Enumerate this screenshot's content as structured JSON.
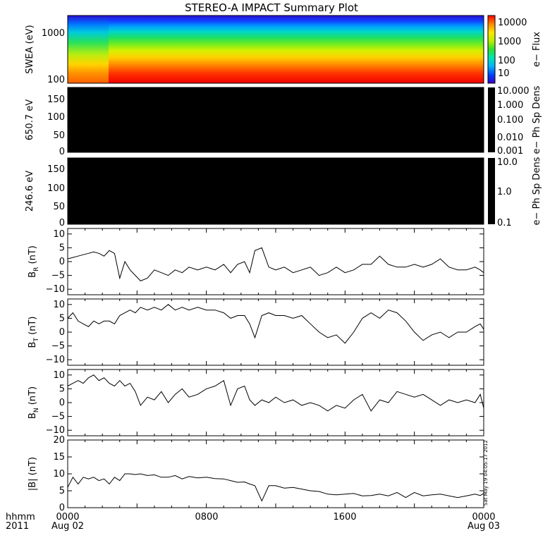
{
  "chart_data": {
    "type": "line",
    "title": "STEREO-A IMPACT Summary Plot",
    "x_axis": {
      "label_line1": "hhmm",
      "label_line2": "2011",
      "ticks": [
        {
          "t": 0,
          "time": "0000",
          "date": "Aug 02"
        },
        {
          "t": 8,
          "time": "0800",
          "date": ""
        },
        {
          "t": 16,
          "time": "1600",
          "date": ""
        },
        {
          "t": 24,
          "time": "0000",
          "date": "Aug 03"
        }
      ],
      "range_hours": [
        0,
        24
      ]
    },
    "panels": [
      {
        "id": "swea",
        "type": "heatmap",
        "ylabel": "SWEA (eV)",
        "y_log": true,
        "ylim": [
          90,
          2000
        ],
        "yticks": [
          "100",
          "1000"
        ],
        "colorbar_label": "e− Flux",
        "colorbar_ticks": [
          "10",
          "100",
          "1000",
          "10000"
        ],
        "colorbar_range_log": [
          0.7,
          4.2
        ],
        "palette": "rainbow (blue low → red high)"
      },
      {
        "id": "pad650",
        "type": "heatmap",
        "ylabel": "650.7 eV",
        "ylim": [
          0,
          180
        ],
        "yticks": [
          "0",
          "50",
          "100",
          "150"
        ],
        "fill": "black",
        "colorbar_label": "e− Ph Sp Dens",
        "colorbar_ticks": [
          "10.000",
          "1.000",
          "0.100",
          "0.010",
          "0.001"
        ]
      },
      {
        "id": "pad246",
        "type": "heatmap",
        "ylabel": "246.6 eV",
        "ylim": [
          0,
          180
        ],
        "yticks": [
          "0",
          "50",
          "100",
          "150"
        ],
        "fill": "black",
        "colorbar_label": "e− Ph Sp Dens",
        "colorbar_ticks": [
          "10.0",
          "1.0",
          "0.1"
        ]
      },
      {
        "id": "br",
        "type": "line",
        "ylabel_main": "B",
        "ylabel_sub": "R",
        "ylabel_unit": " (nT)",
        "ylim": [
          -12,
          12
        ],
        "yticks": [
          "10",
          "5",
          "0",
          "−5",
          "−10"
        ],
        "ytick_values": [
          10,
          5,
          0,
          -5,
          -10
        ],
        "x": [
          0,
          0.3,
          0.6,
          0.9,
          1.2,
          1.5,
          1.8,
          2.1,
          2.4,
          2.7,
          3.0,
          3.3,
          3.6,
          3.9,
          4.2,
          4.6,
          5.0,
          5.4,
          5.8,
          6.2,
          6.6,
          7.0,
          7.5,
          8.0,
          8.5,
          9.0,
          9.4,
          9.8,
          10.2,
          10.5,
          10.8,
          11.2,
          11.6,
          12.0,
          12.5,
          13.0,
          13.5,
          14.0,
          14.5,
          15.0,
          15.5,
          16.0,
          16.5,
          17.0,
          17.5,
          18.0,
          18.5,
          19.0,
          19.5,
          20.0,
          20.5,
          21.0,
          21.5,
          22.0,
          22.5,
          23.0,
          23.5,
          23.8,
          24.0
        ],
        "y": [
          1,
          1.5,
          2,
          2.5,
          3,
          3.5,
          3,
          2,
          4,
          3,
          -6,
          0,
          -3,
          -5,
          -7,
          -6,
          -3,
          -4,
          -5,
          -3,
          -4,
          -2,
          -3,
          -2,
          -3,
          -1,
          -4,
          -1,
          0,
          -4,
          4,
          5,
          -2,
          -3,
          -2,
          -4,
          -3,
          -2,
          -5,
          -4,
          -2,
          -4,
          -3,
          -1,
          -1,
          2,
          -1,
          -2,
          -2,
          -1,
          -2,
          -1,
          1,
          -2,
          -3,
          -3,
          -2,
          -3,
          -4
        ]
      },
      {
        "id": "bt",
        "type": "line",
        "ylabel_main": "B",
        "ylabel_sub": "T",
        "ylabel_unit": " (nT)",
        "ylim": [
          -12,
          12
        ],
        "yticks": [
          "10",
          "5",
          "0",
          "−5",
          "−10"
        ],
        "ytick_values": [
          10,
          5,
          0,
          -5,
          -10
        ],
        "x": [
          0,
          0.3,
          0.6,
          0.9,
          1.2,
          1.5,
          1.8,
          2.1,
          2.4,
          2.7,
          3.0,
          3.3,
          3.6,
          3.9,
          4.2,
          4.6,
          5.0,
          5.4,
          5.8,
          6.2,
          6.6,
          7.0,
          7.5,
          8.0,
          8.5,
          9.0,
          9.4,
          9.8,
          10.2,
          10.5,
          10.8,
          11.2,
          11.6,
          12.0,
          12.5,
          13.0,
          13.5,
          14.0,
          14.5,
          15.0,
          15.5,
          16.0,
          16.5,
          17.0,
          17.5,
          18.0,
          18.5,
          19.0,
          19.5,
          20.0,
          20.5,
          21.0,
          21.5,
          22.0,
          22.5,
          23.0,
          23.5,
          23.8,
          24.0
        ],
        "y": [
          5,
          7,
          4,
          3,
          2,
          4,
          3,
          4,
          4,
          3,
          6,
          7,
          8,
          7,
          9,
          8,
          9,
          8,
          10,
          8,
          9,
          8,
          9,
          8,
          8,
          7,
          5,
          6,
          6,
          3,
          -2,
          6,
          7,
          6,
          6,
          5,
          6,
          3,
          0,
          -2,
          -1,
          -4,
          0,
          5,
          7,
          5,
          8,
          7,
          4,
          0,
          -3,
          -1,
          0,
          -2,
          0,
          0,
          2,
          3,
          1
        ]
      },
      {
        "id": "bn",
        "type": "line",
        "ylabel_main": "B",
        "ylabel_sub": "N",
        "ylabel_unit": " (nT)",
        "ylim": [
          -12,
          12
        ],
        "yticks": [
          "10",
          "5",
          "0",
          "−5",
          "−10"
        ],
        "ytick_values": [
          10,
          5,
          0,
          -5,
          -10
        ],
        "x": [
          0,
          0.3,
          0.6,
          0.9,
          1.2,
          1.5,
          1.8,
          2.1,
          2.4,
          2.7,
          3.0,
          3.3,
          3.6,
          3.9,
          4.2,
          4.6,
          5.0,
          5.4,
          5.8,
          6.2,
          6.6,
          7.0,
          7.5,
          8.0,
          8.5,
          9.0,
          9.4,
          9.8,
          10.2,
          10.5,
          10.8,
          11.2,
          11.6,
          12.0,
          12.5,
          13.0,
          13.5,
          14.0,
          14.5,
          15.0,
          15.5,
          16.0,
          16.5,
          17.0,
          17.5,
          18.0,
          18.5,
          19.0,
          19.5,
          20.0,
          20.5,
          21.0,
          21.5,
          22.0,
          22.5,
          23.0,
          23.5,
          23.8,
          24.0
        ],
        "y": [
          6,
          7,
          8,
          7,
          9,
          10,
          8,
          9,
          7,
          6,
          8,
          6,
          7,
          4,
          -1,
          2,
          1,
          4,
          0,
          3,
          5,
          2,
          3,
          5,
          6,
          8,
          -1,
          5,
          6,
          1,
          -1,
          1,
          0,
          2,
          0,
          1,
          -1,
          0,
          -1,
          -3,
          -1,
          -2,
          1,
          3,
          -3,
          1,
          0,
          4,
          3,
          2,
          3,
          1,
          -1,
          1,
          0,
          1,
          0,
          3,
          -2
        ]
      },
      {
        "id": "bmag",
        "type": "line",
        "ylabel_main": "|B|",
        "ylabel_sub": "",
        "ylabel_unit": " (nT)",
        "ylim": [
          0,
          20
        ],
        "yticks": [
          "20",
          "15",
          "10",
          "5",
          "0"
        ],
        "ytick_values": [
          20,
          15,
          10,
          5,
          0
        ],
        "x": [
          0,
          0.3,
          0.6,
          0.9,
          1.2,
          1.5,
          1.8,
          2.1,
          2.4,
          2.7,
          3.0,
          3.3,
          3.6,
          3.9,
          4.2,
          4.6,
          5.0,
          5.4,
          5.8,
          6.2,
          6.6,
          7.0,
          7.5,
          8.0,
          8.5,
          9.0,
          9.4,
          9.8,
          10.2,
          10.5,
          10.8,
          11.2,
          11.6,
          12.0,
          12.5,
          13.0,
          13.5,
          14.0,
          14.5,
          15.0,
          15.5,
          16.0,
          16.5,
          17.0,
          17.5,
          18.0,
          18.5,
          19.0,
          19.5,
          20.0,
          20.5,
          21.0,
          21.5,
          22.0,
          22.5,
          23.0,
          23.5,
          23.8,
          24.0
        ],
        "y": [
          6,
          9,
          7,
          9,
          8.5,
          9,
          8,
          8.5,
          7,
          9,
          8,
          10,
          10,
          9.8,
          10,
          9.5,
          9.7,
          9,
          9,
          9.5,
          8.5,
          9.2,
          8.8,
          9,
          8.6,
          8.5,
          8,
          7.5,
          7.6,
          7,
          6.5,
          2,
          6.5,
          6.5,
          5.8,
          6,
          5.5,
          5,
          4.8,
          4,
          3.8,
          4,
          4.2,
          3.5,
          3.6,
          4,
          3.5,
          4.5,
          3,
          4.5,
          3.5,
          3.8,
          4,
          3.5,
          3,
          3.5,
          4,
          3.6,
          4.2
        ]
      }
    ]
  },
  "stamp_text": "Sat May 19 04:05:17 2012"
}
